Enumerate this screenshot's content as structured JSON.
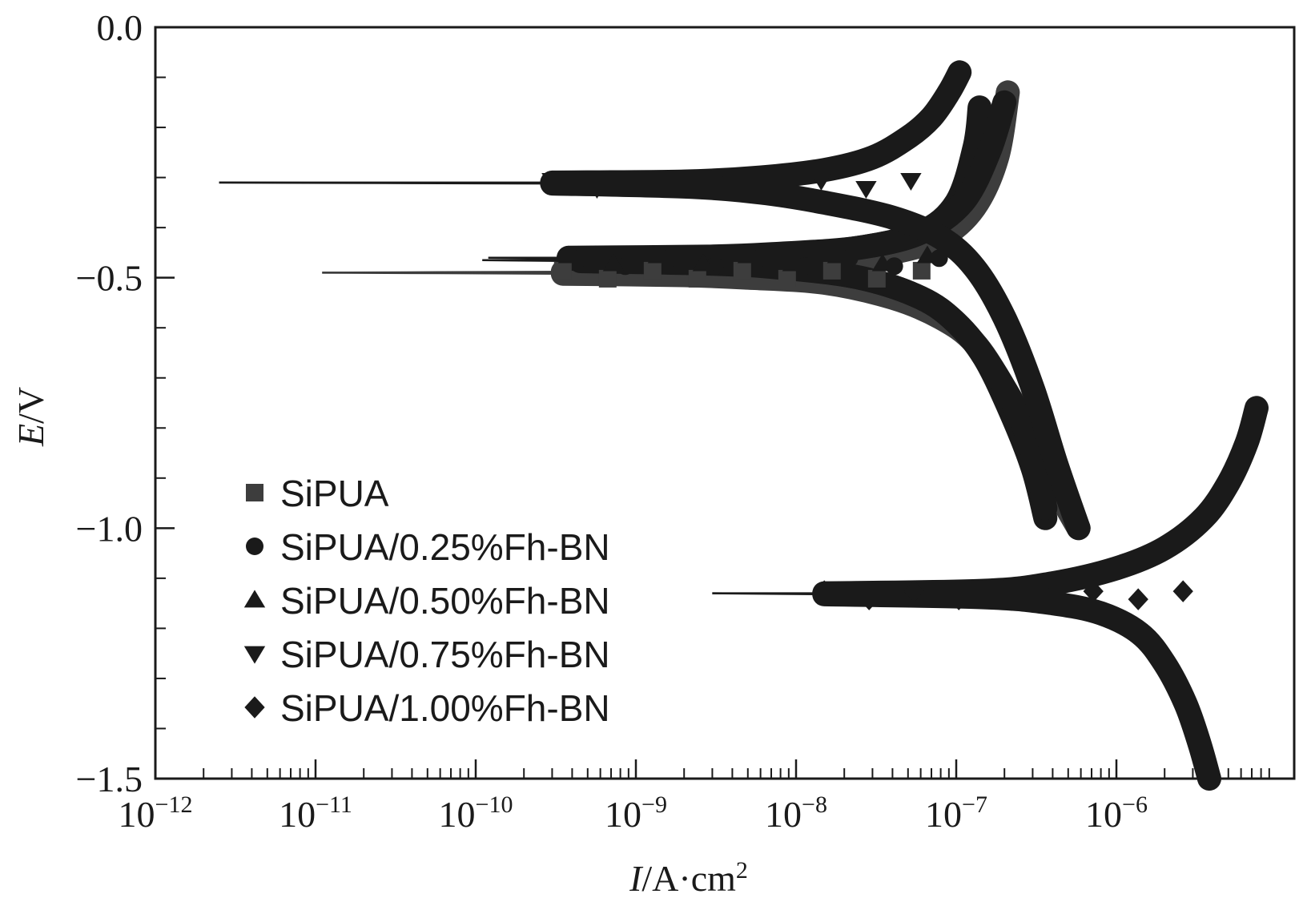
{
  "chart_data": {
    "type": "scatter",
    "title": "",
    "xlabel": {
      "italic": "I",
      "rest": "/A·cm",
      "sup": "2"
    },
    "ylabel": {
      "italic": "E",
      "rest": "/V"
    },
    "x_scale": "log",
    "xlim": [
      1e-12,
      8e-06
    ],
    "ylim": [
      -1.5,
      0.0
    ],
    "x_ticks": [
      {
        "value": 1e-12,
        "base": "10",
        "exp": "−12"
      },
      {
        "value": 1e-11,
        "base": "10",
        "exp": "−11"
      },
      {
        "value": 1e-10,
        "base": "10",
        "exp": "−10"
      },
      {
        "value": 1e-09,
        "base": "10",
        "exp": "−9"
      },
      {
        "value": 1e-08,
        "base": "10",
        "exp": "−8"
      },
      {
        "value": 1e-07,
        "base": "10",
        "exp": "−7"
      },
      {
        "value": 1e-06,
        "base": "10",
        "exp": "−6"
      }
    ],
    "y_ticks": [
      {
        "value": 0.0,
        "label": "0.0"
      },
      {
        "value": -0.5,
        "label": "−0.5"
      },
      {
        "value": -1.0,
        "label": "−1.0"
      },
      {
        "value": -1.5,
        "label": "−1.5"
      }
    ],
    "grid": false,
    "legend_position": "bottom-left",
    "series": [
      {
        "name": "SiPUA",
        "marker": "square",
        "color": "#3d3d3d",
        "ecorr": -0.49,
        "anodic": [
          [
            1.1e-11,
            -0.49
          ],
          [
            3.5e-10,
            -0.488
          ],
          [
            2e-09,
            -0.485
          ],
          [
            5e-09,
            -0.48
          ],
          [
            1.5e-08,
            -0.47
          ],
          [
            4e-08,
            -0.45
          ],
          [
            8e-08,
            -0.42
          ],
          [
            1.3e-07,
            -0.36
          ],
          [
            1.8e-07,
            -0.26
          ],
          [
            2.1e-07,
            -0.13
          ]
        ],
        "cathodic": [
          [
            1.1e-11,
            -0.49
          ],
          [
            3.5e-10,
            -0.492
          ],
          [
            2e-09,
            -0.495
          ],
          [
            5e-09,
            -0.5
          ],
          [
            1.5e-08,
            -0.51
          ],
          [
            4e-08,
            -0.54
          ],
          [
            8e-08,
            -0.58
          ],
          [
            1.3e-07,
            -0.63
          ],
          [
            2e-07,
            -0.72
          ],
          [
            3e-07,
            -0.82
          ],
          [
            4.2e-07,
            -0.92
          ],
          [
            5.8e-07,
            -1.0
          ]
        ]
      },
      {
        "name": "SiPUA/0.25%Fh-BN",
        "marker": "circle",
        "color": "#1a1a1a",
        "ecorr": -0.465,
        "anodic": [
          [
            1.1e-10,
            -0.465
          ],
          [
            4.5e-10,
            -0.465
          ],
          [
            3e-09,
            -0.462
          ],
          [
            8e-09,
            -0.455
          ],
          [
            2.5e-08,
            -0.44
          ],
          [
            6e-08,
            -0.41
          ],
          [
            1e-07,
            -0.35
          ],
          [
            1.3e-07,
            -0.24
          ],
          [
            1.4e-07,
            -0.16
          ]
        ],
        "cathodic": [
          [
            1.1e-10,
            -0.465
          ],
          [
            4.5e-10,
            -0.467
          ],
          [
            3e-09,
            -0.472
          ],
          [
            8e-09,
            -0.48
          ],
          [
            2.5e-08,
            -0.5
          ],
          [
            6e-08,
            -0.54
          ],
          [
            1e-07,
            -0.59
          ],
          [
            1.5e-07,
            -0.66
          ],
          [
            2.2e-07,
            -0.77
          ],
          [
            3e-07,
            -0.88
          ],
          [
            3.6e-07,
            -0.98
          ]
        ]
      },
      {
        "name": "SiPUA/0.50%Fh-BN",
        "marker": "triangle-up",
        "color": "#1a1a1a",
        "ecorr": -0.46,
        "anodic": [
          [
            1.2e-10,
            -0.46
          ],
          [
            3.8e-10,
            -0.46
          ],
          [
            2.8e-09,
            -0.458
          ],
          [
            8e-09,
            -0.452
          ],
          [
            2.5e-08,
            -0.44
          ],
          [
            6e-08,
            -0.41
          ],
          [
            1.1e-07,
            -0.35
          ],
          [
            1.6e-07,
            -0.25
          ],
          [
            2e-07,
            -0.15
          ]
        ],
        "cathodic": [
          [
            1.2e-10,
            -0.46
          ],
          [
            3.8e-10,
            -0.462
          ],
          [
            2.8e-09,
            -0.468
          ],
          [
            8e-09,
            -0.478
          ],
          [
            2.5e-08,
            -0.5
          ],
          [
            6e-08,
            -0.54
          ],
          [
            1e-07,
            -0.59
          ],
          [
            1.6e-07,
            -0.67
          ],
          [
            2.5e-07,
            -0.78
          ],
          [
            3.2e-07,
            -0.88
          ],
          [
            3.6e-07,
            -0.96
          ]
        ]
      },
      {
        "name": "SiPUA/0.75%Fh-BN",
        "marker": "triangle-down",
        "color": "#1a1a1a",
        "ecorr": -0.31,
        "anodic": [
          [
            2.5e-12,
            -0.31
          ],
          [
            3e-10,
            -0.31
          ],
          [
            2e-09,
            -0.308
          ],
          [
            6e-09,
            -0.3
          ],
          [
            1.5e-08,
            -0.285
          ],
          [
            3e-08,
            -0.26
          ],
          [
            5e-08,
            -0.22
          ],
          [
            7e-08,
            -0.18
          ],
          [
            9e-08,
            -0.13
          ],
          [
            1.05e-07,
            -0.09
          ]
        ],
        "cathodic": [
          [
            2.5e-12,
            -0.31
          ],
          [
            3e-10,
            -0.312
          ],
          [
            2e-09,
            -0.318
          ],
          [
            6e-09,
            -0.33
          ],
          [
            1.5e-08,
            -0.35
          ],
          [
            4e-08,
            -0.38
          ],
          [
            8e-08,
            -0.42
          ],
          [
            1.3e-07,
            -0.48
          ],
          [
            2e-07,
            -0.58
          ],
          [
            3e-07,
            -0.72
          ],
          [
            4.2e-07,
            -0.87
          ],
          [
            5.8e-07,
            -1.0
          ]
        ]
      },
      {
        "name": "SiPUA/1.00%Fh-BN",
        "marker": "diamond",
        "color": "#1a1a1a",
        "ecorr": -1.13,
        "anodic": [
          [
            3e-09,
            -1.13
          ],
          [
            1.5e-08,
            -1.13
          ],
          [
            1.5e-07,
            -1.125
          ],
          [
            4e-07,
            -1.11
          ],
          [
            1e-06,
            -1.08
          ],
          [
            2e-06,
            -1.04
          ],
          [
            3.5e-06,
            -0.98
          ],
          [
            5e-06,
            -0.91
          ],
          [
            6.5e-06,
            -0.83
          ],
          [
            7.5e-06,
            -0.76
          ]
        ],
        "cathodic": [
          [
            3e-09,
            -1.13
          ],
          [
            1.5e-08,
            -1.132
          ],
          [
            1.5e-07,
            -1.138
          ],
          [
            4e-07,
            -1.15
          ],
          [
            8e-07,
            -1.17
          ],
          [
            1.4e-06,
            -1.21
          ],
          [
            2e-06,
            -1.27
          ],
          [
            2.7e-06,
            -1.35
          ],
          [
            3.3e-06,
            -1.43
          ],
          [
            3.8e-06,
            -1.5
          ]
        ]
      }
    ]
  }
}
